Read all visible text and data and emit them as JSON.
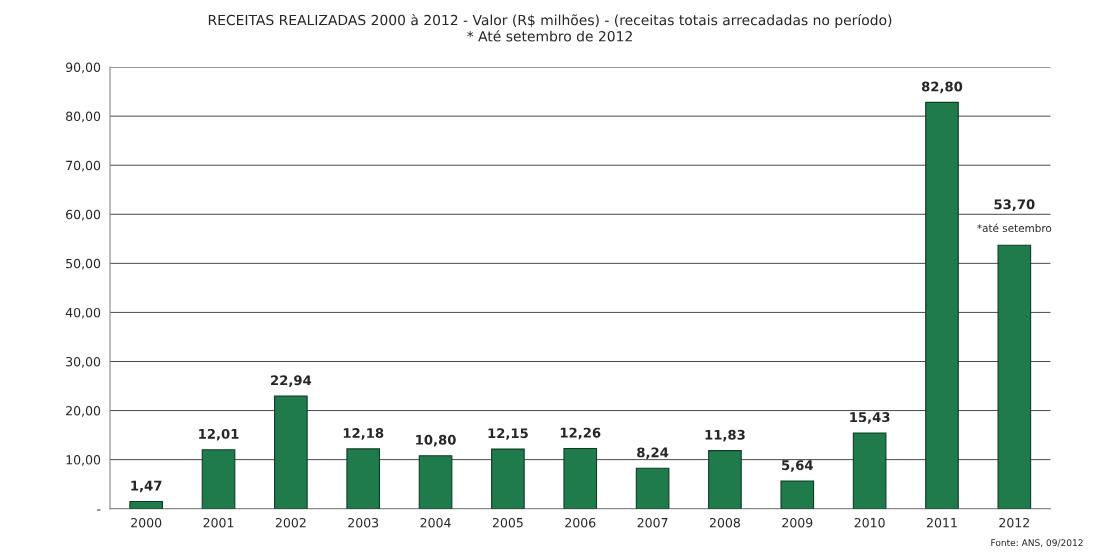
{
  "chart_data": {
    "type": "bar",
    "title": "RECEITAS REALIZADAS 2000 à 2012 - Valor (R$ milhões) - (receitas totais arrecadadas no período)",
    "subtitle": "* Até setembro de 2012",
    "categories": [
      "2000",
      "2001",
      "2002",
      "2003",
      "2004",
      "2005",
      "2006",
      "2007",
      "2008",
      "2009",
      "2010",
      "2011",
      "2012"
    ],
    "values": [
      1.47,
      12.01,
      22.94,
      12.18,
      10.8,
      12.15,
      12.26,
      8.24,
      11.83,
      5.64,
      15.43,
      82.8,
      53.7
    ],
    "value_labels": [
      "1,47",
      "12,01",
      "22,94",
      "12,18",
      "10,80",
      "12,15",
      "12,26",
      "8,24",
      "11,83",
      "5,64",
      "15,43",
      "82,80",
      "53,70"
    ],
    "color": "#1f7a4c",
    "ylim": [
      0,
      90
    ],
    "yticks": [
      {
        "value": 0,
        "label": "-"
      },
      {
        "value": 10,
        "label": "10,00"
      },
      {
        "value": 20,
        "label": "20,00"
      },
      {
        "value": 30,
        "label": "30,00"
      },
      {
        "value": 40,
        "label": "40,00"
      },
      {
        "value": 50,
        "label": "50,00"
      },
      {
        "value": 60,
        "label": "60,00"
      },
      {
        "value": 70,
        "label": "70,00"
      },
      {
        "value": 80,
        "label": "80,00"
      },
      {
        "value": 90,
        "label": "90,00"
      }
    ],
    "grid": "y",
    "legend": false,
    "annotations": [
      "*até setembro",
      "Fonte: ANS, 09/2012"
    ]
  }
}
